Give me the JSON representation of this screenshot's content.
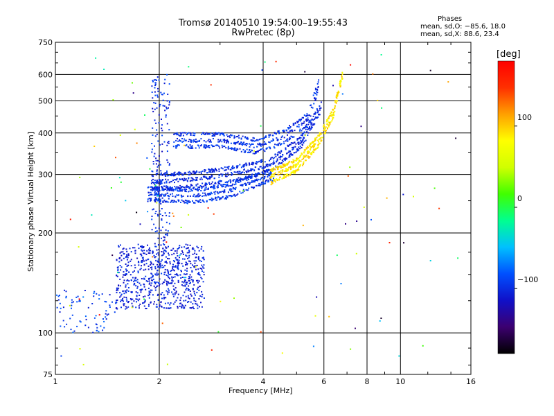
{
  "chart_data": {
    "type": "scatter",
    "title": "Tromsø 20140510 19:54:00–19:55:43",
    "subtitle": "RwPretec (8p)",
    "xlabel": "Frequency [MHz]",
    "ylabel": "Stationary phase Virtual Height [km]",
    "x_scale": "log",
    "y_scale": "log",
    "xlim": [
      1,
      16
    ],
    "ylim": [
      75,
      750
    ],
    "x_ticks": [
      1,
      2,
      4,
      6,
      8,
      10,
      16
    ],
    "x_tick_labels": [
      "1",
      "2",
      "4",
      "6",
      "8",
      "10",
      "16"
    ],
    "y_ticks": [
      75,
      100,
      200,
      300,
      400,
      500,
      600,
      750
    ],
    "y_tick_labels": [
      "75",
      "100",
      "200",
      "300",
      "400",
      "500",
      "600",
      "750"
    ],
    "grid": true,
    "stats": {
      "title": "Phases",
      "o_line": "mean, sd,O: −85.6, 18.0",
      "x_line": "mean, sd,X:  88.6, 23.4"
    },
    "colorbar": {
      "label": "[deg]",
      "range": [
        -180,
        180
      ],
      "ticks": [
        100,
        0,
        -100
      ],
      "tick_labels": [
        "100",
        "0",
        "−100"
      ],
      "colors": [
        "#000000",
        "#3c0070",
        "#1010c8",
        "#0050ff",
        "#00c0ff",
        "#00ff90",
        "#40ff00",
        "#d0ff00",
        "#ffff00",
        "#ffa000",
        "#ff3000",
        "#ff0000"
      ]
    },
    "point_groups": [
      {
        "name": "low E blob",
        "f_range": [
          1.5,
          2.7
        ],
        "h_range": [
          118,
          185
        ],
        "n": 700,
        "phase": [
          -120,
          -90
        ]
      },
      {
        "name": "F1 lower trace",
        "f_range": [
          1.85,
          4.3
        ],
        "curve": [
          [
            1.85,
            262
          ],
          [
            2.5,
            258
          ],
          [
            3.2,
            268
          ],
          [
            4.2,
            300
          ]
        ],
        "spread": 12,
        "n": 500,
        "phase": [
          -110,
          -80
        ]
      },
      {
        "name": "F2 o-trace",
        "f_range": [
          1.9,
          5.9
        ],
        "curve": [
          [
            1.9,
            285
          ],
          [
            2.5,
            290
          ],
          [
            3.2,
            300
          ],
          [
            4.2,
            320
          ],
          [
            5.2,
            380
          ],
          [
            5.9,
            480
          ]
        ],
        "spread": 15,
        "n": 700,
        "phase": [
          -115,
          -85
        ]
      },
      {
        "name": "F2 upper o-trace",
        "f_range": [
          2.2,
          5.8
        ],
        "curve": [
          [
            2.2,
            380
          ],
          [
            3.0,
            380
          ],
          [
            3.8,
            365
          ],
          [
            4.6,
            390
          ],
          [
            5.4,
            440
          ],
          [
            5.8,
            560
          ]
        ],
        "spread": 18,
        "n": 500,
        "phase": [
          -115,
          -80
        ]
      },
      {
        "name": "x-trace",
        "f_range": [
          4.2,
          6.8
        ],
        "curve": [
          [
            4.2,
            295
          ],
          [
            5.0,
            320
          ],
          [
            5.8,
            380
          ],
          [
            6.4,
            460
          ],
          [
            6.8,
            600
          ]
        ],
        "spread": 14,
        "n": 450,
        "phase": [
          70,
          110
        ]
      },
      {
        "name": "column near 2 MHz",
        "f_range": [
          1.9,
          2.15
        ],
        "h_range": [
          140,
          600
        ],
        "n": 220,
        "phase": [
          -120,
          -80
        ]
      },
      {
        "name": "low band trace",
        "f_range": [
          1.0,
          1.5
        ],
        "h_range": [
          100,
          135
        ],
        "n": 80,
        "phase": [
          -110,
          -70
        ]
      },
      {
        "name": "scattered noise",
        "f_range": [
          1.0,
          15.5
        ],
        "h_range": [
          80,
          700
        ],
        "n": 110,
        "phase": [
          -180,
          180
        ]
      }
    ]
  }
}
